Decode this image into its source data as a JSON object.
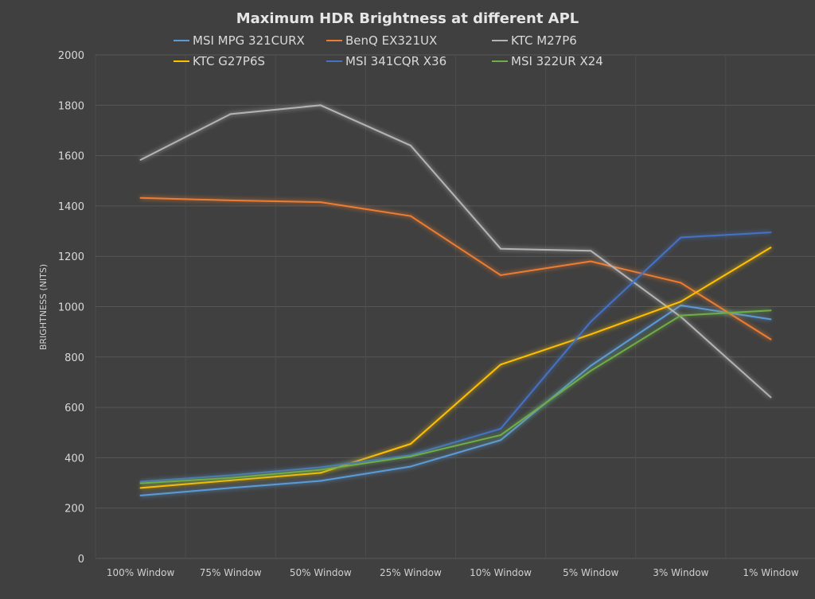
{
  "chart_data": {
    "type": "line",
    "title": "Maximum HDR Brightness at different APL",
    "xlabel": "",
    "ylabel": "BRIGHTNESS (NITS)",
    "ylim": [
      0,
      2000
    ],
    "yticks": [
      0,
      200,
      400,
      600,
      800,
      1000,
      1200,
      1400,
      1600,
      1800,
      2000
    ],
    "grid": true,
    "legend_position": "top",
    "categories": [
      "100% Window",
      "75% Window",
      "50% Window",
      "25% Window",
      "10% Window",
      "5% Window",
      "3% Window",
      "1% Window"
    ],
    "series": [
      {
        "name": "MSI MPG 321CURX",
        "color": "#5B9BD5",
        "values": [
          250,
          280,
          308,
          365,
          470,
          765,
          1005,
          950
        ]
      },
      {
        "name": "BenQ EX321UX",
        "color": "#ED7D31",
        "values": [
          1432,
          1422,
          1415,
          1360,
          1125,
          1180,
          1095,
          870
        ]
      },
      {
        "name": "KTC M27P6",
        "color": "#B4B4B4",
        "values": [
          1583,
          1765,
          1800,
          1640,
          1230,
          1222,
          960,
          640
        ]
      },
      {
        "name": "KTC G27P6S",
        "color": "#FFC000",
        "values": [
          280,
          310,
          340,
          455,
          770,
          890,
          1020,
          1235
        ]
      },
      {
        "name": "MSI 341CQR X36",
        "color": "#4472C4",
        "values": [
          305,
          330,
          362,
          410,
          515,
          940,
          1275,
          1295
        ]
      },
      {
        "name": "MSI 322UR X24",
        "color": "#70AD47",
        "values": [
          298,
          320,
          352,
          405,
          490,
          745,
          965,
          985
        ]
      }
    ]
  }
}
